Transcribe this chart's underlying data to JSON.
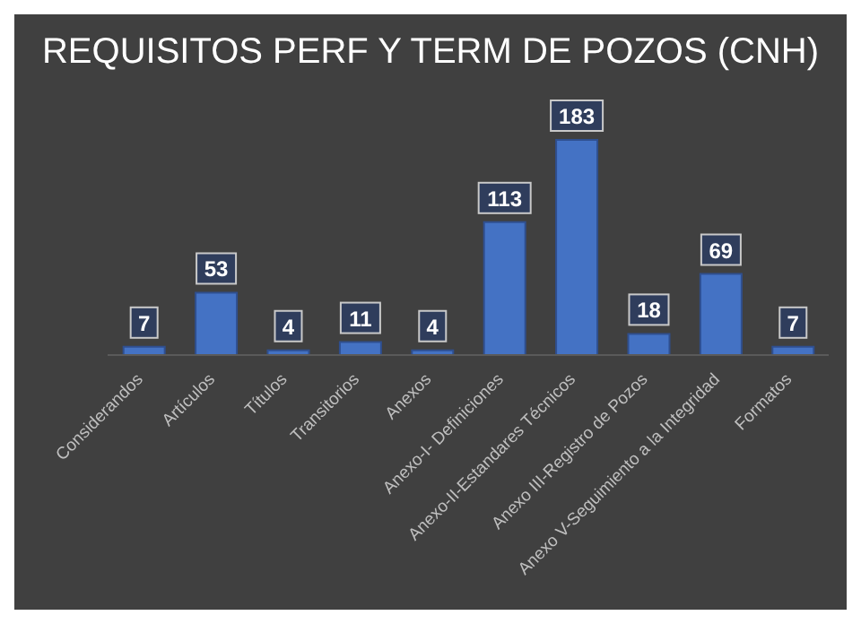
{
  "chart_data": {
    "type": "bar",
    "title": "REQUISITOS PERF Y TERM DE POZOS (CNH)",
    "categories": [
      "Considerandos",
      "Artículos",
      "Títulos",
      "Transitorios",
      "Anexos",
      "Anexo-I- Definiciones",
      "Anexo-II-Estandares Técnicos",
      "Anexo III-Registro de Pozos",
      "Anexo V-Seguimiento a la Integridad",
      "Formatos"
    ],
    "values": [
      7,
      53,
      4,
      11,
      4,
      113,
      183,
      18,
      69,
      7
    ],
    "color": "#4472c4",
    "data_labels": true
  }
}
